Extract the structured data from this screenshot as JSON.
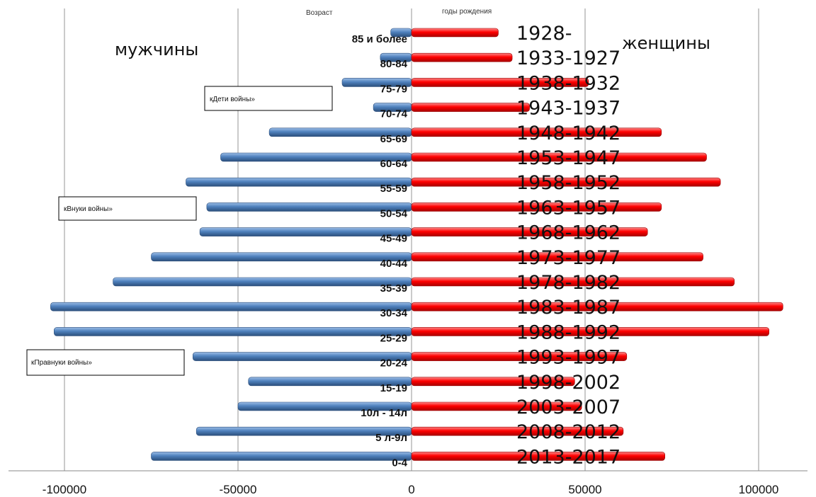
{
  "chart_data": {
    "type": "bar",
    "orientation": "horizontal-pyramid",
    "age_axis_title": "Возраст",
    "birth_years_title": "годы рождения",
    "left_title": "мужчины",
    "right_title": "женщины",
    "categories": [
      "85 и более",
      "80-84",
      "75-79",
      "70-74",
      "65-69",
      "60-64",
      "55-59",
      "50-54",
      "45-49",
      "40-44",
      "35-39",
      "30-34",
      "25-29",
      "20-24",
      "15-19",
      "10л - 14л",
      "5 л-9л",
      "0-4"
    ],
    "birth_years": [
      "1928-",
      "1933-1927",
      "1938-1932",
      "1943-1937",
      "1948-1942",
      "1953-1947",
      "1958-1952",
      "1963-1957",
      "1968-1962",
      "1973-1977",
      "1978-1982",
      "1983-1987",
      "1988-1992",
      "1993-1997",
      "1998-2002",
      "2003-2007",
      "2008-2012",
      "2013-2017"
    ],
    "series": [
      {
        "name": "мужчины",
        "color": "#4f81bd",
        "values": [
          -6000,
          -9000,
          -20000,
          -11000,
          -41000,
          -55000,
          -65000,
          -59000,
          -61000,
          -75000,
          -86000,
          -104000,
          -103000,
          -63000,
          -47000,
          -50000,
          -62000,
          -75000
        ]
      },
      {
        "name": "женщины",
        "color": "#ff0000",
        "values": [
          25000,
          29000,
          51000,
          34000,
          72000,
          85000,
          89000,
          72000,
          68000,
          84000,
          93000,
          107000,
          103000,
          62000,
          47000,
          49000,
          61000,
          73000
        ]
      }
    ],
    "xlim": [
      -115000,
      115000
    ],
    "xticks": [
      -100000,
      -50000,
      0,
      50000,
      100000
    ],
    "xtick_labels": [
      "-100000",
      "-50000",
      "0",
      "50000",
      "100000"
    ],
    "grid": true,
    "annotations": [
      "кДети войны»",
      "кВнуки войны»",
      "кПравнуки войны»"
    ]
  }
}
